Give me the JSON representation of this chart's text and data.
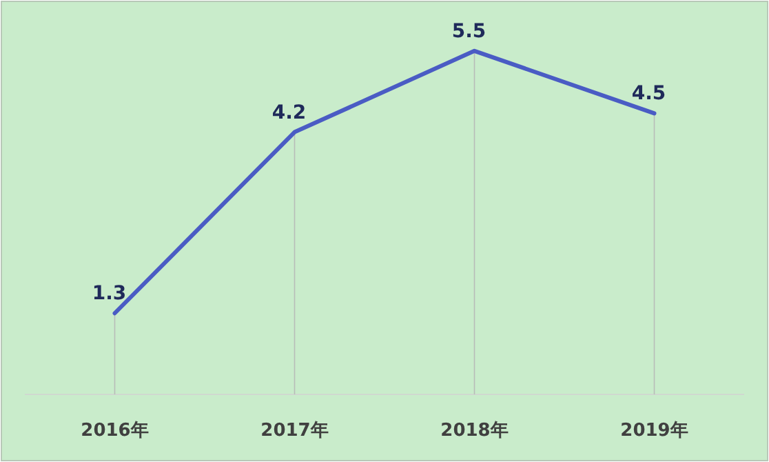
{
  "chart_data": {
    "type": "line",
    "categories": [
      "2016年",
      "2017年",
      "2018年",
      "2019年"
    ],
    "values": [
      1.3,
      4.2,
      5.5,
      4.5
    ],
    "color": "#4a5cc4",
    "data_labels": true,
    "grid": "x"
  }
}
